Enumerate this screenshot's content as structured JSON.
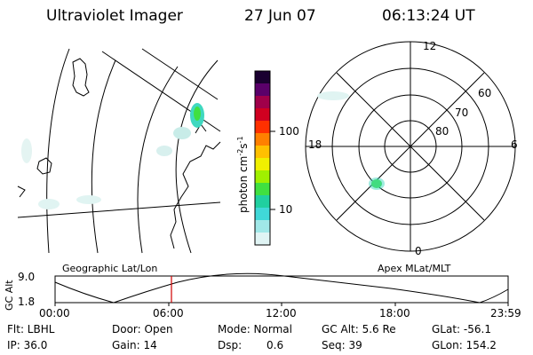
{
  "header": {
    "title": "Ultraviolet Imager",
    "date": "27 Jun 07",
    "time": "06:13:24 UT"
  },
  "colorbar": {
    "unit_prefix": "photon cm",
    "unit_exp1": "-2",
    "unit_mid": "s",
    "unit_exp2": "-1",
    "ticks": [
      "100",
      "10"
    ],
    "colors": [
      "#1a0030",
      "#5a006a",
      "#a0004a",
      "#d00020",
      "#ff3000",
      "#ff8000",
      "#ffc000",
      "#f0f000",
      "#a0f000",
      "#40e040",
      "#20d0a0",
      "#40d8d8",
      "#a0e8e8",
      "#e0f4f4"
    ]
  },
  "polar": {
    "mlt_labels": [
      "12",
      "18",
      "6",
      "0"
    ],
    "mlat_labels": [
      "60",
      "70",
      "80"
    ]
  },
  "timeline": {
    "left_label": "Geographic Lat/Lon",
    "right_label": "Apex MLat/MLT",
    "yaxis_label": "GC Alt",
    "ymax": "9.0",
    "ymin": "1.8",
    "ticks": [
      "00:00",
      "06:00",
      "12:00",
      "18:00",
      "23:59"
    ],
    "marker_color": "#d00000",
    "marker_time": "06:13:24"
  },
  "info": {
    "filter": "Flt: LBHL",
    "ip": "IP: 36.0",
    "door": "Door: Open",
    "gain": "Gain: 14",
    "mode": "Mode: Normal",
    "dsp_label": "Dsp:",
    "dsp_value": "0.6",
    "gcalt": "GC Alt: 5.6 Re",
    "seq": "Seq: 39",
    "glat": "GLat: -56.1",
    "glon": "GLon: 154.2"
  }
}
